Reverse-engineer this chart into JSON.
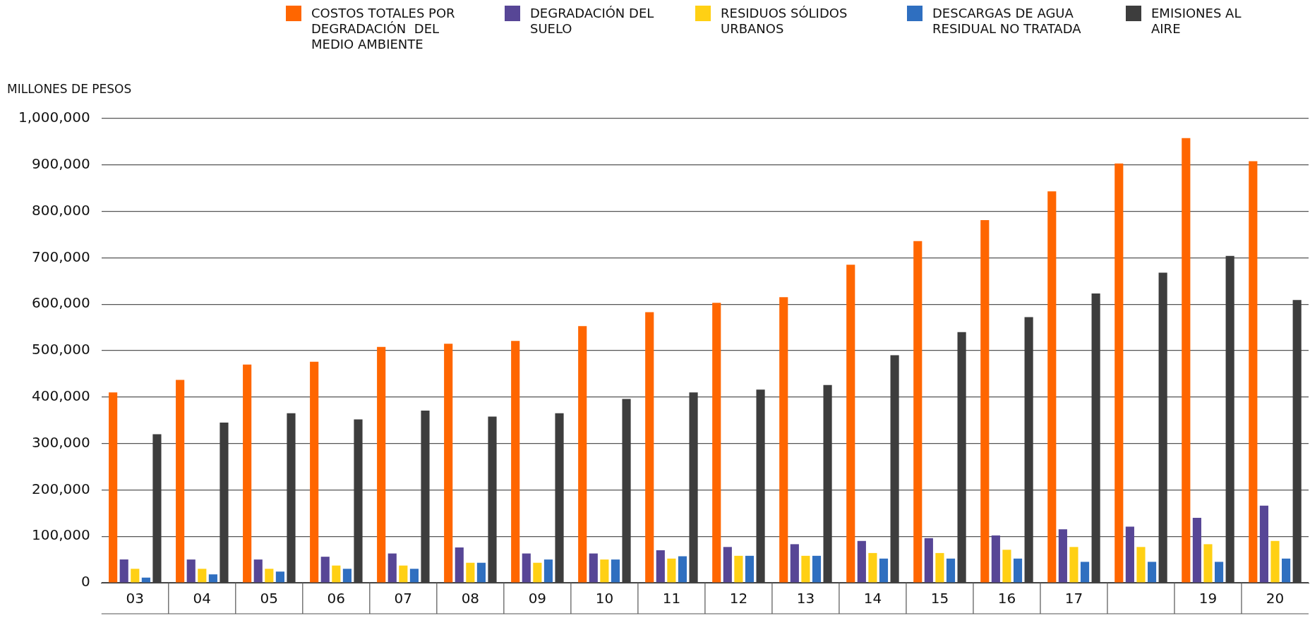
{
  "chart_data": {
    "type": "bar",
    "ylabel": "MILLONES DE PESOS",
    "categories": [
      "03",
      "04",
      "05",
      "06",
      "07",
      "08",
      "09",
      "10",
      "11",
      "12",
      "13",
      "14",
      "15",
      "16",
      "17",
      null,
      "19",
      "20"
    ],
    "series": [
      {
        "name": "COSTOS TOTALES POR DEGRADACIÓN  DEL MEDIO AMBIENTE",
        "color": "#ff6600",
        "values": [
          410000,
          437000,
          470000,
          476000,
          508000,
          515000,
          521000,
          553000,
          583000,
          603000,
          615000,
          685000,
          736000,
          781000,
          843000,
          903000,
          958000,
          908000
        ]
      },
      {
        "name": "DEGRADACIÓN DEL SUELO",
        "color": "#574696",
        "values": [
          50000,
          50000,
          50000,
          56000,
          63000,
          76000,
          63000,
          63000,
          70000,
          77000,
          83000,
          90000,
          96000,
          102000,
          115000,
          121000,
          140000,
          166000
        ]
      },
      {
        "name": "RESIDUOS SÓLIDOS URBANOS",
        "color": "#ffd014",
        "values": [
          30000,
          30000,
          30000,
          37000,
          37000,
          43000,
          43000,
          50000,
          52000,
          58000,
          58000,
          64000,
          64000,
          71000,
          77000,
          77000,
          83000,
          90000
        ]
      },
      {
        "name": "DESCARGAS DE AGUA RESIDUAL NO TRATADA",
        "color": "#2f6fc0",
        "values": [
          11000,
          18000,
          24000,
          30000,
          30000,
          43000,
          50000,
          50000,
          57000,
          58000,
          58000,
          52000,
          52000,
          52000,
          45000,
          45000,
          45000,
          52000
        ]
      },
      {
        "name": "EMISIONES AL AIRE",
        "color": "#3d3d3d",
        "values": [
          320000,
          345000,
          365000,
          352000,
          371000,
          358000,
          365000,
          396000,
          410000,
          416000,
          426000,
          490000,
          540000,
          572000,
          623000,
          668000,
          704000,
          609000
        ]
      }
    ],
    "ylim": [
      0,
      1000000
    ],
    "yticks": [
      {
        "value": 0,
        "label": "0"
      },
      {
        "value": 100000,
        "label": "100,000"
      },
      {
        "value": 200000,
        "label": "200,000"
      },
      {
        "value": 300000,
        "label": "300,000"
      },
      {
        "value": 400000,
        "label": "400,000"
      },
      {
        "value": 500000,
        "label": "500,000"
      },
      {
        "value": 600000,
        "label": "600,000"
      },
      {
        "value": 700000,
        "label": "700,000"
      },
      {
        "value": 800000,
        "label": "800,000"
      },
      {
        "value": 900000,
        "label": "900,000"
      },
      {
        "value": 1000000,
        "label": "1,000,000"
      }
    ],
    "grid": "y",
    "legend": "top"
  }
}
